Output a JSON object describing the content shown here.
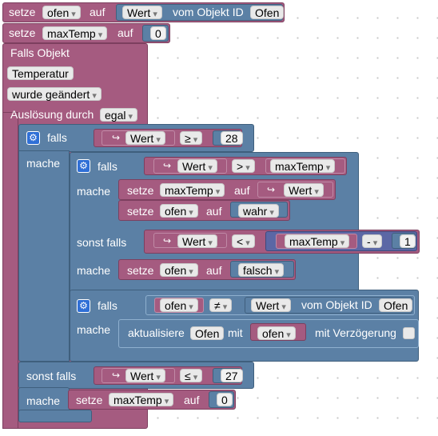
{
  "row1": {
    "setze": "setze",
    "var": "ofen",
    "auf": "auf",
    "wert": "Wert",
    "vom": "vom Objekt ID",
    "obj": "Ofen"
  },
  "row2": {
    "setze": "setze",
    "var": "maxTemp",
    "auf": "auf",
    "val": "0"
  },
  "trigger": {
    "falls_objekt": "Falls Objekt",
    "obj": "Temperatur",
    "wurde": "wurde geändert",
    "ausloesung": "Auslösung durch",
    "egal": "egal"
  },
  "if1": {
    "falls": "falls",
    "wert": "Wert",
    "op": "≥",
    "val": "28",
    "mache": "mache"
  },
  "if2": {
    "falls": "falls",
    "wert": "Wert",
    "op": ">",
    "var": "maxTemp",
    "mache": "mache",
    "set1": {
      "setze": "setze",
      "var": "maxTemp",
      "auf": "auf",
      "wert": "Wert"
    },
    "set2": {
      "setze": "setze",
      "var": "ofen",
      "auf": "auf",
      "val": "wahr"
    },
    "sonst": "sonst falls",
    "wert2": "Wert",
    "op2": "<",
    "var2": "maxTemp",
    "minus": "-",
    "num": "1",
    "mache2": "mache",
    "set3": {
      "setze": "setze",
      "var": "ofen",
      "auf": "auf",
      "val": "falsch"
    }
  },
  "if3": {
    "falls": "falls",
    "var": "ofen",
    "op": "≠",
    "wert": "Wert",
    "vom": "vom Objekt ID",
    "obj": "Ofen",
    "mache": "mache",
    "upd": {
      "akt": "aktualisiere",
      "obj": "Ofen",
      "mit": "mit",
      "var": "ofen",
      "delay": "mit Verzögerung"
    }
  },
  "else1": {
    "sonst": "sonst falls",
    "wert": "Wert",
    "op": "≤",
    "val": "27",
    "mache": "mache",
    "set": {
      "setze": "setze",
      "var": "maxTemp",
      "auf": "auf",
      "val": "0"
    }
  },
  "icons": {
    "gear": "gear-icon",
    "chevron": "chevron-down-icon",
    "arrow": "return-arrow-icon"
  }
}
